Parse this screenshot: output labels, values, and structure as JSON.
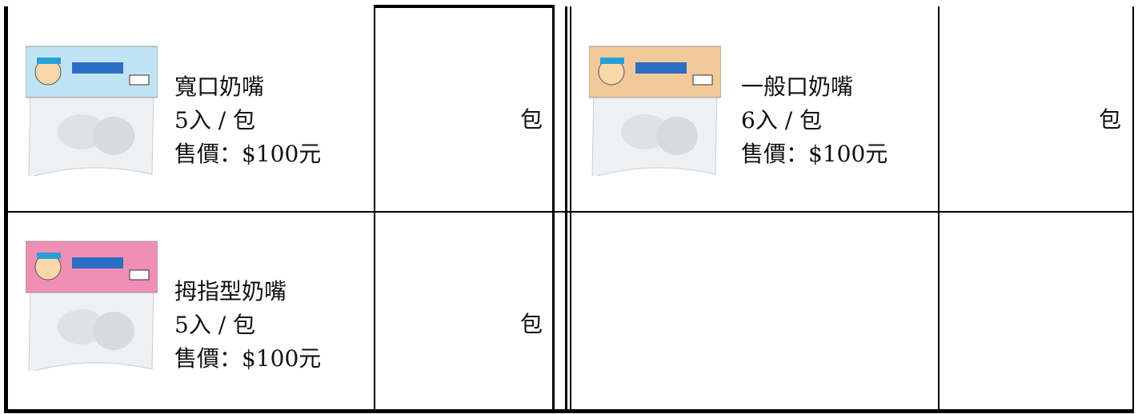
{
  "products": [
    {
      "name": "寬口奶嘴",
      "quantity": "5入 / 包",
      "price": "售價：$100元",
      "unit": "包"
    },
    {
      "name": "一般口奶嘴",
      "quantity": "6入 / 包",
      "price": "售價：$100元",
      "unit": "包"
    },
    {
      "name": "拇指型奶嘴",
      "quantity": "5入 / 包",
      "price": "售價：$100元",
      "unit": "包"
    }
  ]
}
